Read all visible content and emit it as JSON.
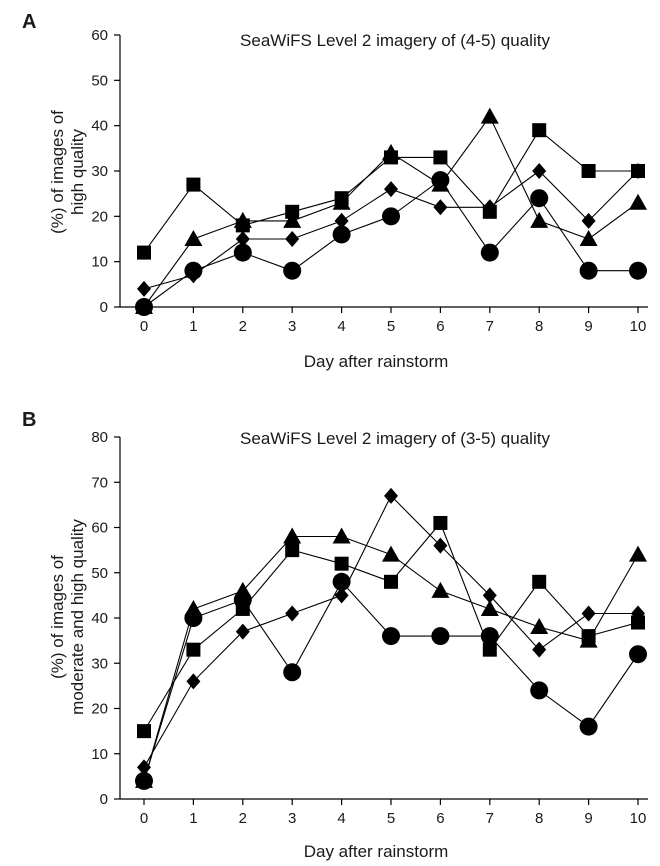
{
  "figure": {
    "background": "#ffffff",
    "ink": "#000000"
  },
  "chart_data": [
    {
      "panel": "A",
      "type": "line",
      "title": "SeaWiFS Level 2 imagery of (4-5) quality",
      "xlabel": "Day after rainstorm",
      "ylabel": [
        "(%) of images of",
        "high quality"
      ],
      "x": [
        0,
        1,
        2,
        3,
        4,
        5,
        6,
        7,
        8,
        9,
        10
      ],
      "xlim": [
        0,
        10
      ],
      "ylim": [
        0,
        60
      ],
      "yticks": [
        0,
        10,
        20,
        30,
        40,
        50,
        60
      ],
      "grid": false,
      "legend": "none",
      "series": [
        {
          "marker": "square",
          "values": [
            12,
            27,
            18,
            21,
            24,
            33,
            33,
            21,
            39,
            30,
            30
          ]
        },
        {
          "marker": "triangle",
          "values": [
            0,
            15,
            19,
            19,
            23,
            34,
            27,
            42,
            19,
            15,
            23
          ]
        },
        {
          "marker": "diamond",
          "values": [
            4,
            7,
            15,
            15,
            19,
            26,
            22,
            22,
            30,
            19,
            30
          ]
        },
        {
          "marker": "circle",
          "values": [
            0,
            8,
            12,
            8,
            16,
            20,
            28,
            12,
            24,
            8,
            8
          ]
        }
      ]
    },
    {
      "panel": "B",
      "type": "line",
      "title": "SeaWiFS Level 2 imagery of (3-5) quality",
      "xlabel": "Day after rainstorm",
      "ylabel": [
        "(%) of images of",
        "moderate and high quality"
      ],
      "x": [
        0,
        1,
        2,
        3,
        4,
        5,
        6,
        7,
        8,
        9,
        10
      ],
      "xlim": [
        0,
        10
      ],
      "ylim": [
        0,
        80
      ],
      "yticks": [
        0,
        10,
        20,
        30,
        40,
        50,
        60,
        70,
        80
      ],
      "grid": false,
      "legend": "none",
      "series": [
        {
          "marker": "square",
          "values": [
            15,
            33,
            42,
            55,
            52,
            48,
            61,
            33,
            48,
            36,
            39
          ]
        },
        {
          "marker": "triangle",
          "values": [
            4,
            42,
            46,
            58,
            58,
            54,
            46,
            42,
            38,
            35,
            54
          ]
        },
        {
          "marker": "diamond",
          "values": [
            7,
            26,
            37,
            41,
            45,
            67,
            56,
            45,
            33,
            41,
            41
          ]
        },
        {
          "marker": "circle",
          "values": [
            4,
            40,
            44,
            28,
            48,
            36,
            36,
            36,
            24,
            16,
            32
          ]
        }
      ]
    }
  ]
}
